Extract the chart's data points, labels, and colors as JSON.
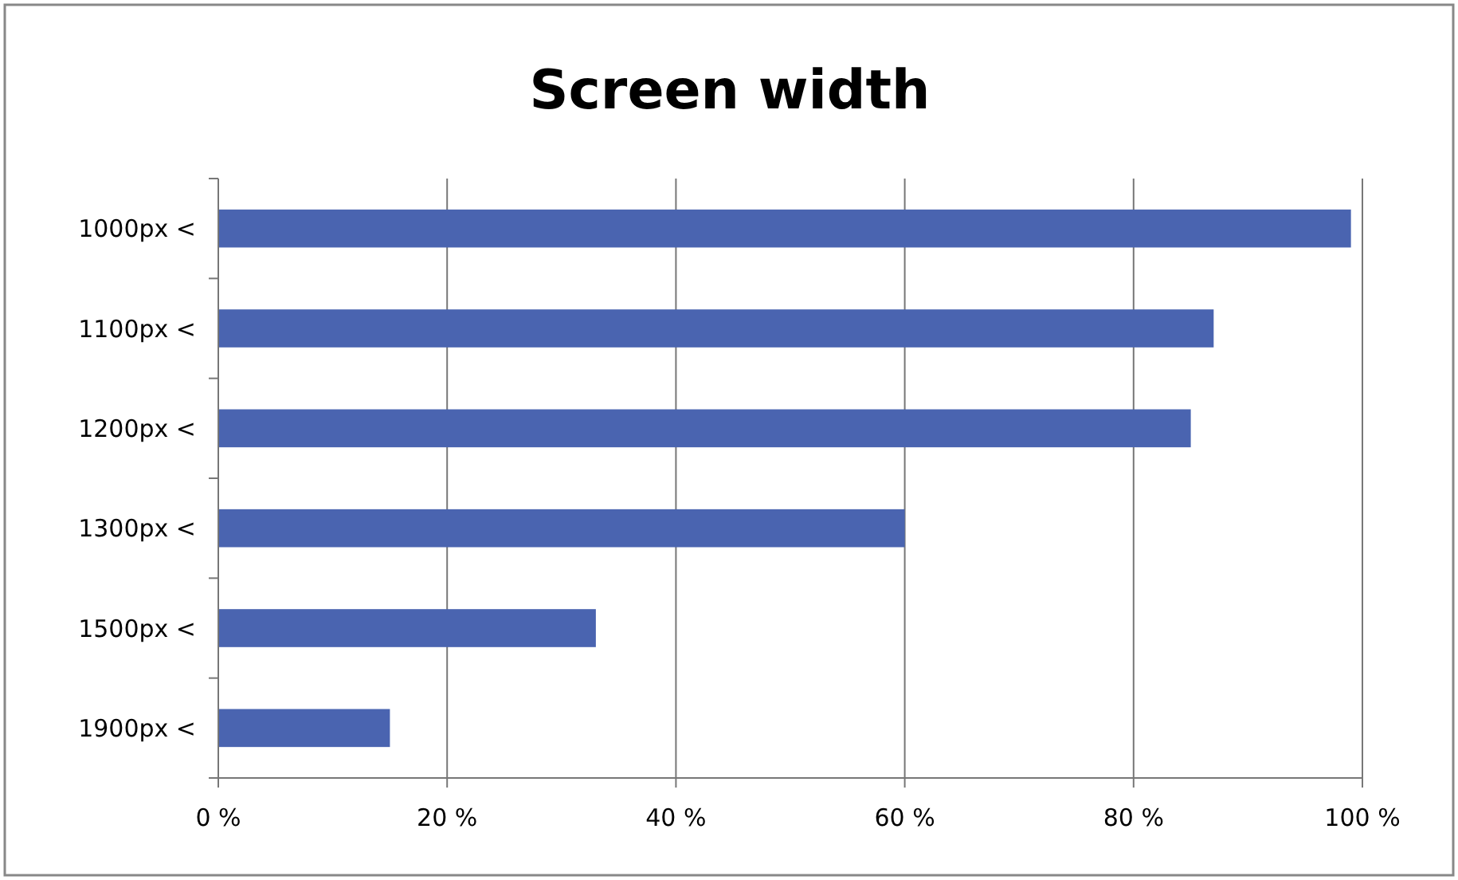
{
  "chart_data": {
    "type": "bar",
    "orientation": "horizontal",
    "title": "Screen width",
    "categories": [
      "1000px <",
      "1100px <",
      "1200px <",
      "1300px <",
      "1500px <",
      "1900px <"
    ],
    "values": [
      99,
      87,
      85,
      60,
      33,
      15
    ],
    "color": "#4a64b0",
    "xlim": [
      0,
      100
    ],
    "xticks": [
      {
        "value": 0,
        "label": "0 %"
      },
      {
        "value": 20,
        "label": "20 %"
      },
      {
        "value": 40,
        "label": "40 %"
      },
      {
        "value": 60,
        "label": "60 %"
      },
      {
        "value": 80,
        "label": "80 %"
      },
      {
        "value": 100,
        "label": "100 %"
      }
    ],
    "grid": "x"
  }
}
